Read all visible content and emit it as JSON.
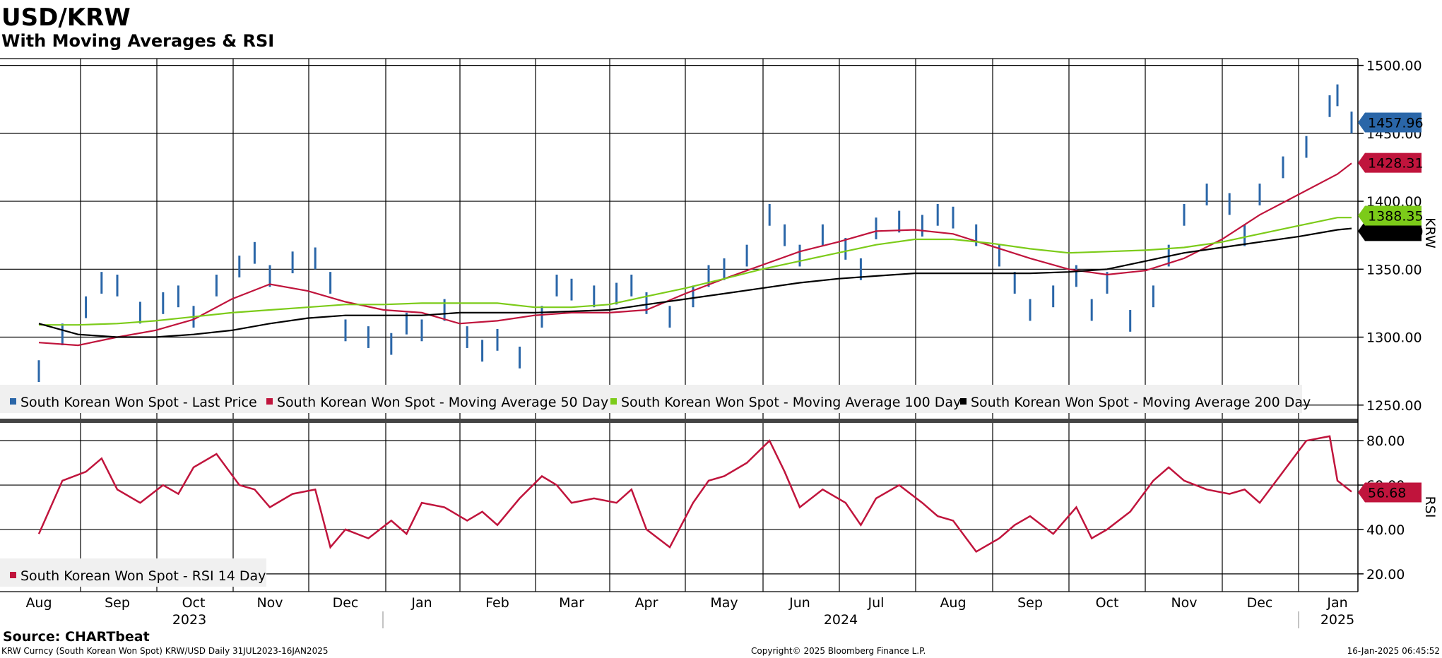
{
  "header": {
    "title": "USD/KRW",
    "subtitle": "With Moving Averages & RSI"
  },
  "colors": {
    "price": "#2a66a8",
    "ma50": "#c0143c",
    "ma100": "#7ccb19",
    "ma200": "#000000",
    "rsi": "#c0143c",
    "legend_bg": "#f0f0f0"
  },
  "chart_data": [
    {
      "type": "line",
      "title": "USD/KRW",
      "ylabel": "KRW",
      "ylim": [
        1240,
        1505
      ],
      "yticks": [
        "1250.00",
        "1300.00",
        "1350.00",
        "1400.00",
        "1450.00",
        "1500.00"
      ],
      "xlabel": "",
      "months": [
        "Aug",
        "Sep",
        "Oct",
        "Nov",
        "Dec",
        "Jan",
        "Feb",
        "Mar",
        "Apr",
        "May",
        "Jun",
        "Jul",
        "Aug",
        "Sep",
        "Oct",
        "Nov",
        "Dec",
        "Jan"
      ],
      "years": [
        "2023",
        "2024",
        "2025"
      ],
      "legend": [
        "South Korean Won Spot - Last Price",
        "South Korean Won Spot - Moving Average 50 Day",
        "South Korean Won Spot - Moving Average 100 Day",
        "South Korean Won Spot - Moving Average 200 Day"
      ],
      "last_values": {
        "price": "1457.96",
        "ma50": "1428.31",
        "ma100": "1388.35",
        "ma200": "1380.10"
      },
      "series": [
        {
          "name": "Last Price",
          "x": [
            0,
            0.3,
            0.6,
            0.8,
            1,
            1.3,
            1.6,
            1.8,
            2,
            2.3,
            2.6,
            2.8,
            3,
            3.3,
            3.6,
            3.8,
            4,
            4.3,
            4.6,
            4.8,
            5,
            5.3,
            5.6,
            5.8,
            6,
            6.3,
            6.6,
            6.8,
            7,
            7.3,
            7.6,
            7.8,
            8,
            8.3,
            8.6,
            8.8,
            9,
            9.3,
            9.6,
            9.8,
            10,
            10.3,
            10.6,
            10.8,
            11,
            11.3,
            11.6,
            11.8,
            12,
            12.3,
            12.6,
            12.8,
            13,
            13.3,
            13.6,
            13.8,
            14,
            14.3,
            14.6,
            14.8,
            15,
            15.3,
            15.6,
            15.8,
            16,
            16.3,
            16.6,
            16.9,
            17,
            17.2
          ],
          "values": [
            1275,
            1302,
            1322,
            1340,
            1338,
            1318,
            1325,
            1330,
            1315,
            1338,
            1352,
            1362,
            1345,
            1355,
            1358,
            1340,
            1305,
            1300,
            1295,
            1310,
            1305,
            1320,
            1300,
            1290,
            1298,
            1285,
            1315,
            1338,
            1335,
            1330,
            1332,
            1338,
            1325,
            1315,
            1330,
            1345,
            1350,
            1360,
            1390,
            1375,
            1360,
            1375,
            1365,
            1350,
            1380,
            1385,
            1382,
            1390,
            1388,
            1375,
            1360,
            1340,
            1320,
            1330,
            1345,
            1320,
            1340,
            1312,
            1330,
            1360,
            1390,
            1405,
            1398,
            1375,
            1405,
            1425,
            1440,
            1470,
            1478,
            1458
          ]
        },
        {
          "name": "Moving Average 50 Day",
          "x": [
            0,
            0.5,
            1,
            1.5,
            2,
            2.5,
            3,
            3.5,
            4,
            4.5,
            5,
            5.5,
            6,
            6.5,
            7,
            7.5,
            8,
            8.5,
            9,
            9.5,
            10,
            10.5,
            11,
            11.5,
            12,
            12.5,
            13,
            13.5,
            14,
            14.5,
            15,
            15.5,
            16,
            16.5,
            17,
            17.2
          ],
          "values": [
            1296,
            1294,
            1300,
            1305,
            1313,
            1328,
            1339,
            1334,
            1326,
            1320,
            1318,
            1310,
            1312,
            1316,
            1318,
            1318,
            1320,
            1332,
            1343,
            1353,
            1363,
            1370,
            1378,
            1379,
            1376,
            1367,
            1358,
            1350,
            1346,
            1349,
            1358,
            1372,
            1390,
            1405,
            1420,
            1428
          ]
        },
        {
          "name": "Moving Average 100 Day",
          "x": [
            0,
            0.5,
            1,
            1.5,
            2,
            2.5,
            3,
            3.5,
            4,
            4.5,
            5,
            5.5,
            6,
            6.5,
            7,
            7.5,
            8,
            8.5,
            9,
            9.5,
            10,
            10.5,
            11,
            11.5,
            12,
            12.5,
            13,
            13.5,
            14,
            14.5,
            15,
            15.5,
            16,
            16.5,
            17,
            17.2
          ],
          "values": [
            1309,
            1309,
            1310,
            1312,
            1315,
            1318,
            1320,
            1322,
            1324,
            1324,
            1325,
            1325,
            1325,
            1322,
            1322,
            1324,
            1330,
            1336,
            1343,
            1350,
            1356,
            1362,
            1368,
            1372,
            1372,
            1369,
            1365,
            1362,
            1363,
            1364,
            1366,
            1370,
            1376,
            1382,
            1388,
            1388
          ]
        },
        {
          "name": "Moving Average 200 Day",
          "x": [
            0,
            0.5,
            1,
            1.5,
            2,
            2.5,
            3,
            3.5,
            4,
            4.5,
            5,
            5.5,
            6,
            6.5,
            7,
            7.5,
            8,
            8.5,
            9,
            9.5,
            10,
            10.5,
            11,
            11.5,
            12,
            12.5,
            13,
            13.5,
            14,
            14.5,
            15,
            15.5,
            16,
            16.5,
            17,
            17.2
          ],
          "values": [
            1310,
            1302,
            1300,
            1300,
            1302,
            1305,
            1310,
            1314,
            1316,
            1316,
            1316,
            1318,
            1318,
            1318,
            1319,
            1320,
            1324,
            1328,
            1332,
            1336,
            1340,
            1343,
            1345,
            1347,
            1347,
            1347,
            1347,
            1348,
            1350,
            1356,
            1362,
            1366,
            1370,
            1374,
            1379,
            1380
          ]
        }
      ]
    },
    {
      "type": "line",
      "ylabel": "RSI",
      "ylim": [
        12,
        88
      ],
      "yticks": [
        "20.00",
        "40.00",
        "60.00",
        "80.00"
      ],
      "legend": [
        "South Korean Won Spot - RSI 14 Day"
      ],
      "last_value": "56.68",
      "series": [
        {
          "name": "RSI 14 Day",
          "x": [
            0,
            0.3,
            0.6,
            0.8,
            1,
            1.3,
            1.6,
            1.8,
            2,
            2.3,
            2.6,
            2.8,
            3,
            3.3,
            3.6,
            3.8,
            4,
            4.3,
            4.6,
            4.8,
            5,
            5.3,
            5.6,
            5.8,
            6,
            6.3,
            6.6,
            6.8,
            7,
            7.3,
            7.6,
            7.8,
            8,
            8.3,
            8.6,
            8.8,
            9,
            9.3,
            9.6,
            9.8,
            10,
            10.3,
            10.6,
            10.8,
            11,
            11.3,
            11.6,
            11.8,
            12,
            12.3,
            12.6,
            12.8,
            13,
            13.3,
            13.6,
            13.8,
            14,
            14.3,
            14.6,
            14.8,
            15,
            15.3,
            15.6,
            15.8,
            16,
            16.3,
            16.6,
            16.9,
            17,
            17.2
          ],
          "values": [
            38,
            62,
            66,
            72,
            58,
            52,
            60,
            56,
            68,
            74,
            60,
            58,
            50,
            56,
            58,
            32,
            40,
            36,
            44,
            38,
            52,
            50,
            44,
            48,
            42,
            54,
            64,
            60,
            52,
            54,
            52,
            58,
            40,
            32,
            52,
            62,
            64,
            70,
            80,
            66,
            50,
            58,
            52,
            42,
            54,
            60,
            52,
            46,
            44,
            30,
            36,
            42,
            46,
            38,
            50,
            36,
            40,
            48,
            62,
            68,
            62,
            58,
            56,
            58,
            52,
            66,
            80,
            82,
            62,
            57
          ]
        }
      ]
    }
  ],
  "footer": {
    "source": "Source: CHARTbeat",
    "description": "KRW Curncy (South Korean Won Spot) KRW/USD  Daily 31JUL2023-16JAN2025",
    "copyright": "Copyright© 2025 Bloomberg Finance L.P.",
    "timestamp": "16-Jan-2025 06:45:52"
  }
}
